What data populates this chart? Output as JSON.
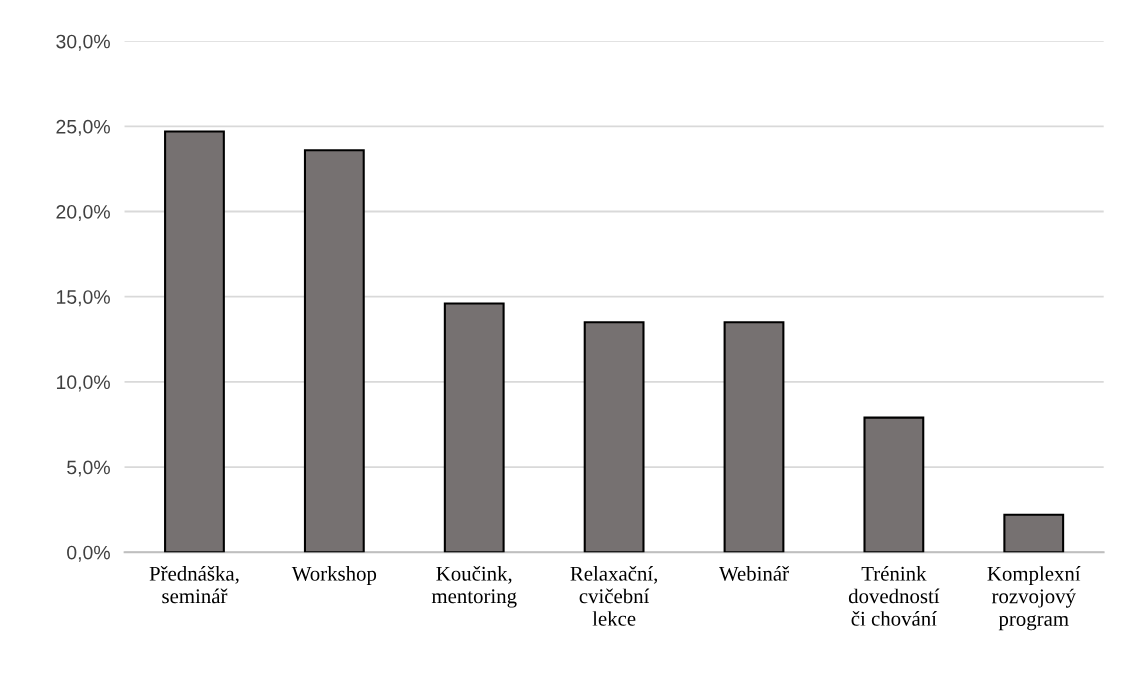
{
  "chart_data": {
    "type": "bar",
    "categories": [
      "Přednáška,\nseminář",
      "Workshop",
      "Koučink,\nmentoring",
      "Relaxační,\ncvičební\nlekce",
      "Webinář",
      "Trénink\ndovedností\nči chování",
      "Komplexní\nrozvojový\nprogram"
    ],
    "values": [
      24.7,
      23.6,
      14.6,
      13.5,
      13.5,
      7.9,
      2.2
    ],
    "color": "#767171",
    "ylim": [
      0,
      30
    ],
    "yticks": [
      {
        "value": 0,
        "label": "0,0%"
      },
      {
        "value": 5,
        "label": "5,0%"
      },
      {
        "value": 10,
        "label": "10,0%"
      },
      {
        "value": 15,
        "label": "15,0%"
      },
      {
        "value": 20,
        "label": "20,0%"
      },
      {
        "value": 25,
        "label": "25,0%"
      },
      {
        "value": 30,
        "label": "30,0%"
      }
    ],
    "grid": "y"
  }
}
